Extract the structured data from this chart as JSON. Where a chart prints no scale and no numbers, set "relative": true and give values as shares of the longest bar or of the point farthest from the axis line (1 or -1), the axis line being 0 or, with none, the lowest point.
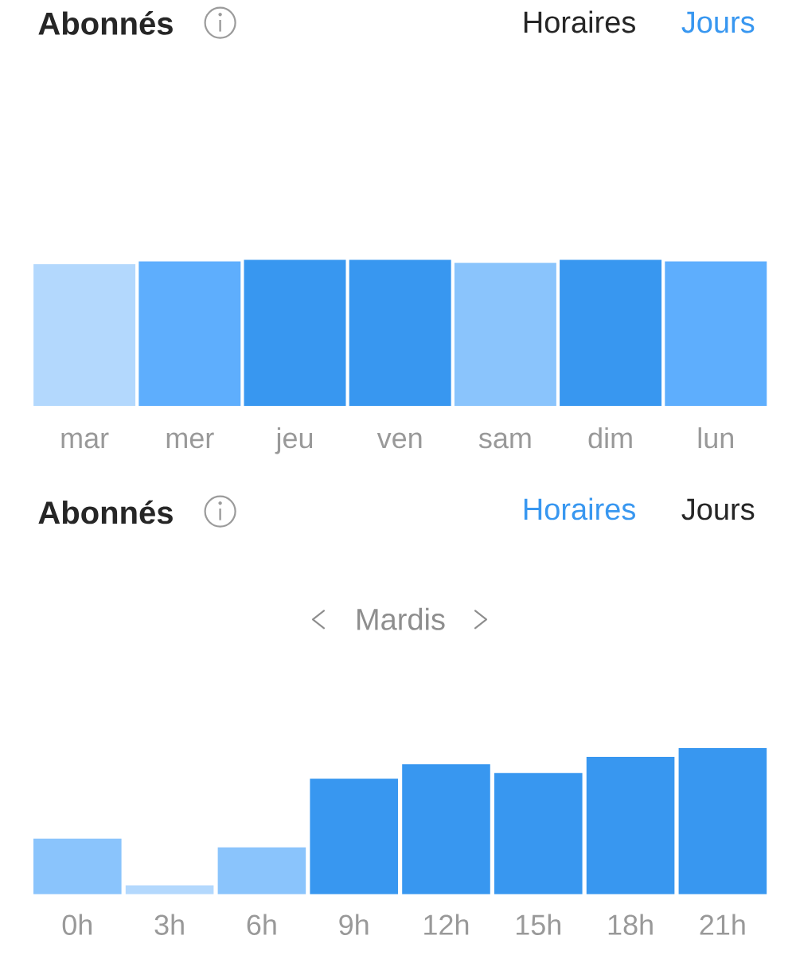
{
  "chart_data": [
    {
      "type": "bar",
      "title": "Abonnés",
      "annotations": [
        "Horaires",
        "Jours"
      ],
      "categories": [
        "mar",
        "mer",
        "jeu",
        "ven",
        "sam",
        "dim",
        "lun"
      ],
      "values": [
        0.97,
        0.99,
        1,
        1,
        0.98,
        1,
        0.99
      ],
      "colors": [
        "#b3d8fd",
        "#5eaefd",
        "#3897f0",
        "#3897f0",
        "#8ac4fc",
        "#3897f0",
        "#5eaefd"
      ],
      "relative": true
    },
    {
      "type": "bar",
      "title": "Abonnés",
      "subtitle": "Mardis",
      "annotations": [
        "Horaires",
        "Jours"
      ],
      "categories": [
        "0h",
        "3h",
        "6h",
        "9h",
        "12h",
        "15h",
        "18h",
        "21h"
      ],
      "values": [
        0.38,
        0.06,
        0.32,
        0.79,
        0.89,
        0.83,
        0.94,
        1
      ],
      "colors": [
        "#8ac4fc",
        "#b3d8fd",
        "#8ac4fc",
        "#3897f0",
        "#3897f0",
        "#3897f0",
        "#3897f0",
        "#3897f0"
      ],
      "relative": true
    }
  ]
}
